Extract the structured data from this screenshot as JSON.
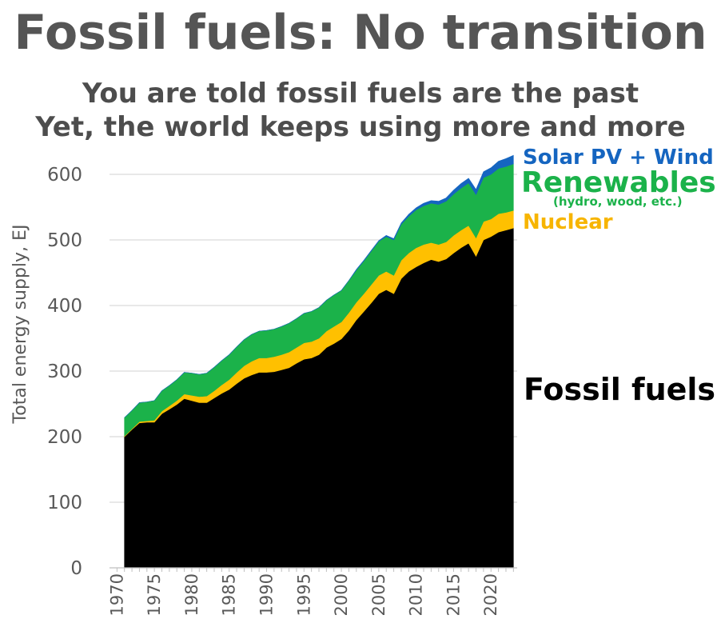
{
  "header": {
    "title": "Fossil fuels: No transition",
    "subtitle_line1": "You are told fossil fuels are the past",
    "subtitle_line2": "Yet, the world keeps using more and more"
  },
  "labels": {
    "solar": "Solar PV + Wind",
    "renewables": "Renewables",
    "renewables_sub": "(hydro, wood, etc.)",
    "nuclear": "Nuclear",
    "fossil": "Fossil fuels"
  },
  "colors": {
    "fossil": "#000000",
    "nuclear": "#ffc000",
    "renewables": "#1bb24a",
    "solar_wind": "#1565c0"
  },
  "chart_data": {
    "type": "area",
    "stacked": true,
    "ylabel": "Total energy supply, EJ",
    "ylim": [
      0,
      630
    ],
    "yticks": [
      0,
      100,
      200,
      300,
      400,
      500,
      600
    ],
    "xticks": [
      1970,
      1975,
      1980,
      1985,
      1990,
      1995,
      2000,
      2005,
      2010,
      2015,
      2020
    ],
    "grid": true,
    "x": [
      1971,
      1972,
      1973,
      1974,
      1975,
      1976,
      1977,
      1978,
      1979,
      1980,
      1981,
      1982,
      1983,
      1984,
      1985,
      1986,
      1987,
      1988,
      1989,
      1990,
      1991,
      1992,
      1993,
      1994,
      1995,
      1996,
      1997,
      1998,
      1999,
      2000,
      2001,
      2002,
      2003,
      2004,
      2005,
      2006,
      2007,
      2008,
      2009,
      2010,
      2011,
      2012,
      2013,
      2014,
      2015,
      2016,
      2017,
      2018,
      2019,
      2020,
      2021,
      2022,
      2023
    ],
    "series": [
      {
        "name": "Fossil fuels",
        "values": [
          200,
          211,
          221,
          222,
          222,
          235,
          242,
          249,
          258,
          255,
          252,
          252,
          259,
          266,
          272,
          281,
          289,
          294,
          298,
          298,
          299,
          302,
          305,
          312,
          318,
          320,
          325,
          336,
          342,
          349,
          362,
          378,
          391,
          404,
          418,
          424,
          418,
          441,
          452,
          459,
          465,
          470,
          467,
          471,
          480,
          488,
          495,
          475,
          500,
          505,
          512,
          515,
          518
        ]
      },
      {
        "name": "Nuclear",
        "values": [
          1,
          1,
          2,
          2,
          3,
          4,
          5,
          6,
          7,
          8,
          9,
          10,
          11,
          13,
          15,
          17,
          19,
          21,
          22,
          22,
          23,
          23,
          24,
          24,
          25,
          25,
          25,
          25,
          26,
          26,
          27,
          27,
          27,
          28,
          28,
          28,
          28,
          28,
          28,
          29,
          28,
          26,
          26,
          26,
          27,
          27,
          27,
          28,
          28,
          27,
          28,
          27,
          27
        ]
      },
      {
        "name": "Renewables",
        "values": [
          28,
          28,
          29,
          29,
          30,
          31,
          31,
          32,
          33,
          34,
          34,
          35,
          36,
          37,
          38,
          39,
          40,
          41,
          41,
          42,
          42,
          43,
          44,
          44,
          45,
          46,
          47,
          47,
          48,
          48,
          49,
          49,
          50,
          51,
          52,
          53,
          54,
          55,
          56,
          58,
          59,
          60,
          61,
          62,
          63,
          64,
          65,
          66,
          67,
          68,
          69,
          70,
          71
        ]
      },
      {
        "name": "Solar PV + Wind",
        "values": [
          0,
          0,
          0,
          0,
          0,
          0,
          0,
          0,
          0,
          0,
          0,
          0,
          0,
          0,
          0,
          0,
          0,
          0,
          0,
          0,
          0,
          0,
          0,
          0,
          0,
          0,
          0,
          0,
          0,
          0,
          0,
          1,
          1,
          1,
          1,
          2,
          2,
          2,
          3,
          3,
          4,
          4,
          5,
          5,
          6,
          7,
          7,
          8,
          9,
          10,
          11,
          12,
          13
        ]
      }
    ]
  }
}
